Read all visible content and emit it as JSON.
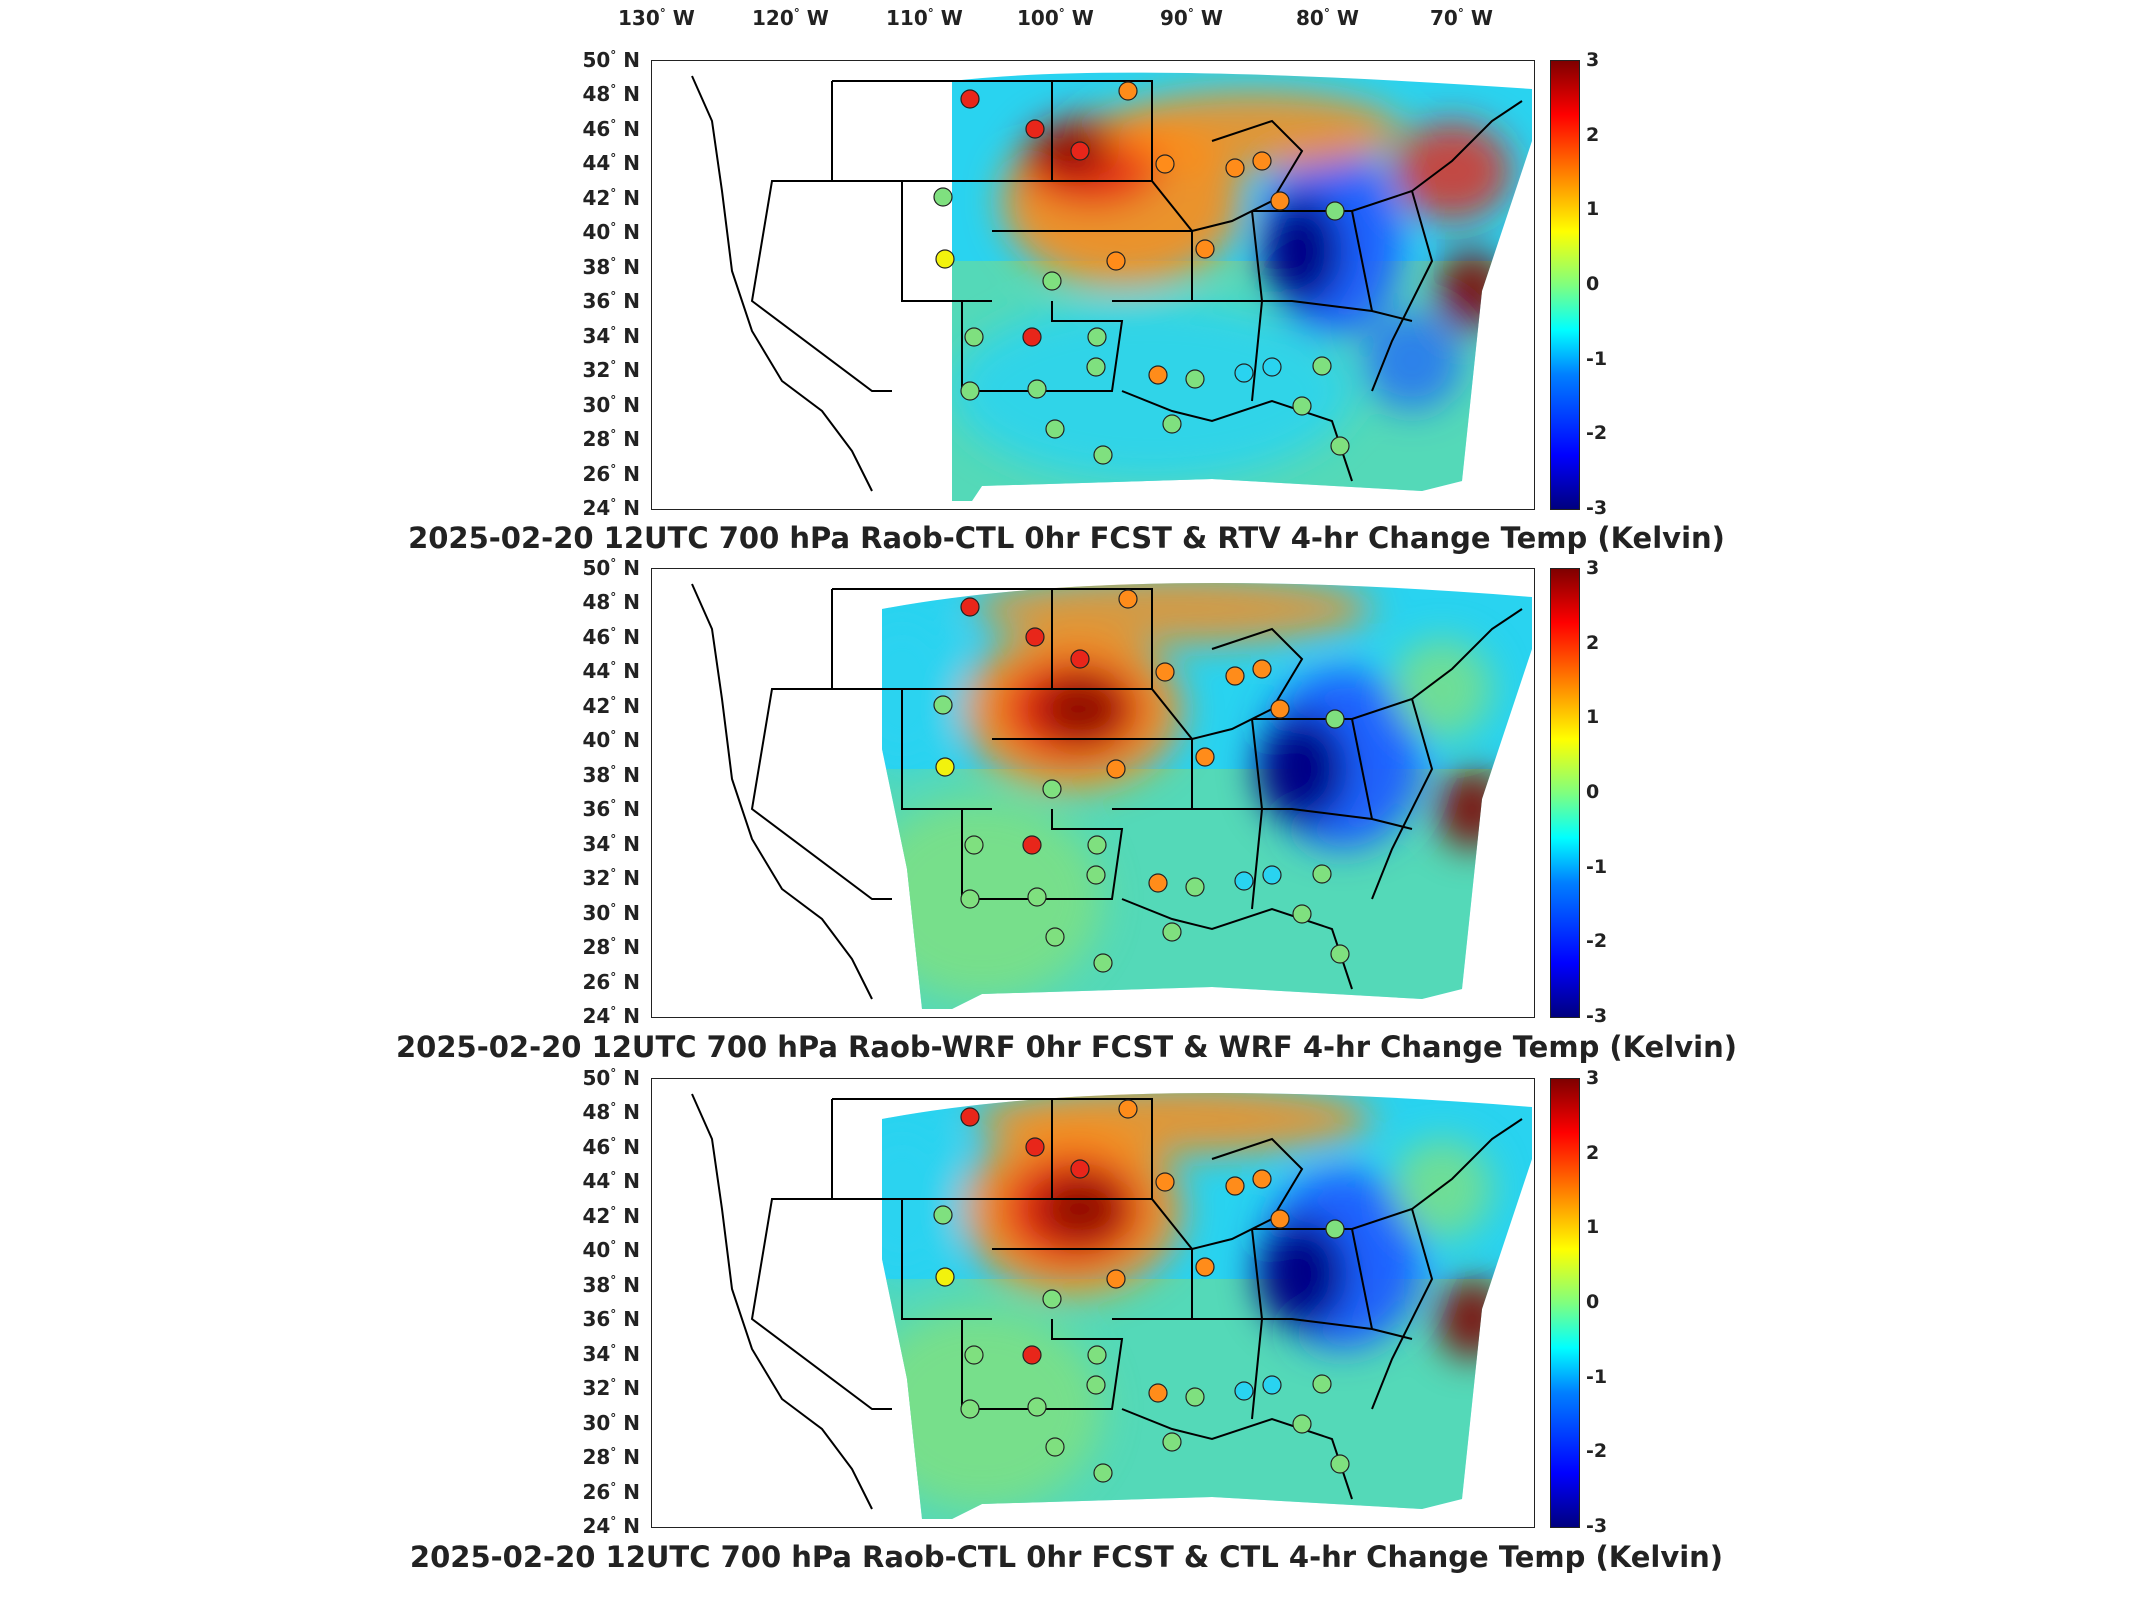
{
  "longitude_labels": [
    {
      "value": "130",
      "dir": "W"
    },
    {
      "value": "120",
      "dir": "W"
    },
    {
      "value": "110",
      "dir": "W"
    },
    {
      "value": "100",
      "dir": "W"
    },
    {
      "value": "90",
      "dir": "W"
    },
    {
      "value": "80",
      "dir": "W"
    },
    {
      "value": "70",
      "dir": "W"
    }
  ],
  "latitude_labels": [
    {
      "value": "50",
      "dir": "N"
    },
    {
      "value": "48",
      "dir": "N"
    },
    {
      "value": "46",
      "dir": "N"
    },
    {
      "value": "44",
      "dir": "N"
    },
    {
      "value": "42",
      "dir": "N"
    },
    {
      "value": "40",
      "dir": "N"
    },
    {
      "value": "38",
      "dir": "N"
    },
    {
      "value": "36",
      "dir": "N"
    },
    {
      "value": "34",
      "dir": "N"
    },
    {
      "value": "32",
      "dir": "N"
    },
    {
      "value": "30",
      "dir": "N"
    },
    {
      "value": "28",
      "dir": "N"
    },
    {
      "value": "26",
      "dir": "N"
    },
    {
      "value": "24",
      "dir": "N"
    }
  ],
  "colorbar": {
    "ticks": [
      "3",
      "2",
      "1",
      "0",
      "-1",
      "-2",
      "-3"
    ],
    "min": -3,
    "max": 3,
    "colormap": "jet"
  },
  "panels": [
    {
      "title": "2025-02-20 12UTC 700 hPa Raob-CTL 0hr FCST & RTV 4-hr Change Temp (Kelvin)"
    },
    {
      "title": "2025-02-20 12UTC 700 hPa Raob-WRF 0hr FCST & WRF 4-hr Change Temp (Kelvin)"
    },
    {
      "title": "2025-02-20 12UTC 700 hPa Raob-CTL 0hr FCST & CTL 4-hr Change Temp (Kelvin)"
    }
  ],
  "colors": {
    "dark_red": "#7f0000",
    "red": "#e8261a",
    "orange": "#ff8c1a",
    "yellow": "#f2f20d",
    "green": "#7fe07f",
    "cyan": "#29d3f0",
    "blue": "#1f5cff",
    "dark_blue": "#00007f"
  }
}
